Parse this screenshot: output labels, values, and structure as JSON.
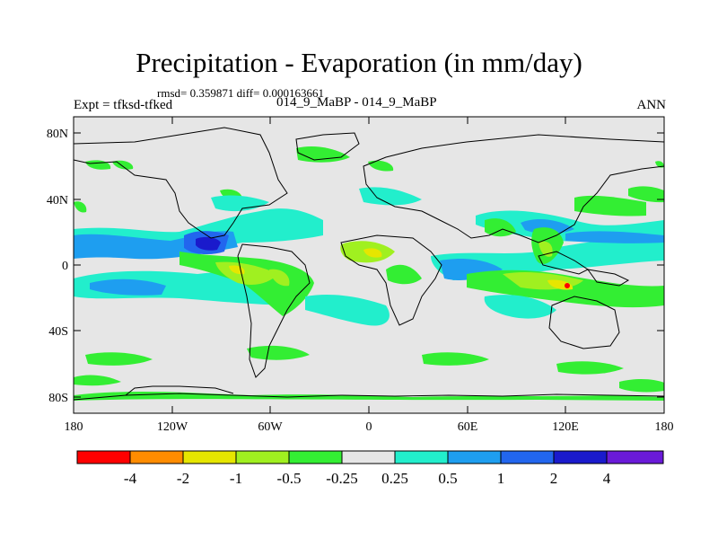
{
  "title": "Precipitation - Evaporation (in mm/day)",
  "stats": "rmsd= 0.359871 diff= 0.000163661",
  "expt_label": "Expt = tfksd-tfked",
  "case_label": "014_9_MaBP - 014_9_MaBP",
  "season": "ANN",
  "y_ticks": [
    "80N",
    "40N",
    "0",
    "40S",
    "80S"
  ],
  "x_ticks": [
    "180",
    "120W",
    "60W",
    "0",
    "60E",
    "120E",
    "180"
  ],
  "colorbar": {
    "colors": [
      "#ff0000",
      "#ff8c00",
      "#e6e600",
      "#a0f020",
      "#33ee33",
      "#e6e6e6",
      "#22eecc",
      "#1e9ef0",
      "#2266ee",
      "#1a1acc",
      "#6a1ad8"
    ],
    "labels": [
      "-4",
      "-2",
      "-1",
      "-0.5",
      "-0.25",
      "0.25",
      "0.5",
      "1",
      "2",
      "4"
    ]
  }
}
